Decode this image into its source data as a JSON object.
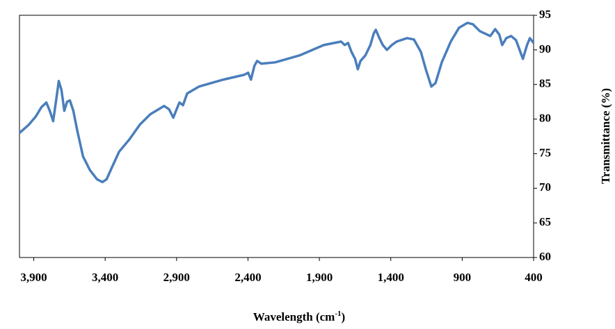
{
  "chart_data": {
    "type": "line",
    "x_label": {
      "text": "Wavelength (cm",
      "sup": "-1",
      "end": ")"
    },
    "y_label": "Transmittance (%)",
    "x": [
      4000,
      3934,
      3885,
      3847,
      3812,
      3788,
      3764,
      3740,
      3725,
      3706,
      3686,
      3667,
      3647,
      3623,
      3594,
      3555,
      3506,
      3457,
      3419,
      3390,
      3351,
      3302,
      3229,
      3157,
      3084,
      2987,
      2952,
      2923,
      2904,
      2880,
      2855,
      2826,
      2743,
      2573,
      2427,
      2399,
      2379,
      2355,
      2336,
      2306,
      2209,
      2039,
      1869,
      1748,
      1723,
      1699,
      1675,
      1650,
      1631,
      1612,
      1578,
      1543,
      1519,
      1505,
      1480,
      1456,
      1427,
      1393,
      1359,
      1286,
      1238,
      1189,
      1155,
      1116,
      1087,
      1043,
      980,
      922,
      864,
      825,
      776,
      703,
      669,
      640,
      620,
      591,
      557,
      523,
      475,
      446,
      426,
      400
    ],
    "series": [
      {
        "color": "#4a7ebb",
        "values": [
          78.0,
          79.2,
          80.4,
          81.7,
          82.4,
          81.2,
          79.7,
          83.2,
          85.5,
          84.2,
          81.2,
          82.5,
          82.7,
          81.2,
          78.2,
          74.6,
          72.6,
          71.3,
          70.9,
          71.3,
          73.1,
          75.3,
          77.1,
          79.2,
          80.7,
          81.9,
          81.4,
          80.2,
          81.2,
          82.4,
          82.0,
          83.7,
          84.7,
          85.7,
          86.4,
          86.7,
          85.7,
          87.7,
          88.4,
          88.0,
          88.2,
          89.2,
          90.7,
          91.2,
          90.7,
          91.0,
          89.7,
          88.7,
          87.2,
          88.4,
          89.2,
          90.7,
          92.4,
          92.9,
          91.7,
          90.7,
          90.0,
          90.7,
          91.2,
          91.7,
          91.5,
          89.7,
          87.2,
          84.7,
          85.2,
          88.2,
          91.2,
          93.2,
          93.9,
          93.7,
          92.7,
          92.0,
          93.0,
          92.2,
          90.7,
          91.7,
          92.0,
          91.4,
          88.7,
          90.7,
          91.7,
          91.0
        ]
      }
    ],
    "xlim": [
      4000,
      400
    ],
    "xticks": [
      {
        "value": 3900,
        "label": "3,900"
      },
      {
        "value": 3400,
        "label": "3,400"
      },
      {
        "value": 2900,
        "label": "2,900"
      },
      {
        "value": 2400,
        "label": "2,400"
      },
      {
        "value": 1900,
        "label": "1,900"
      },
      {
        "value": 1400,
        "label": "1,400"
      },
      900,
      400
    ],
    "ylim": [
      60,
      95
    ],
    "yticks": [
      60,
      65,
      70,
      75,
      80,
      85,
      90,
      95
    ],
    "y_axis_side": "right"
  }
}
